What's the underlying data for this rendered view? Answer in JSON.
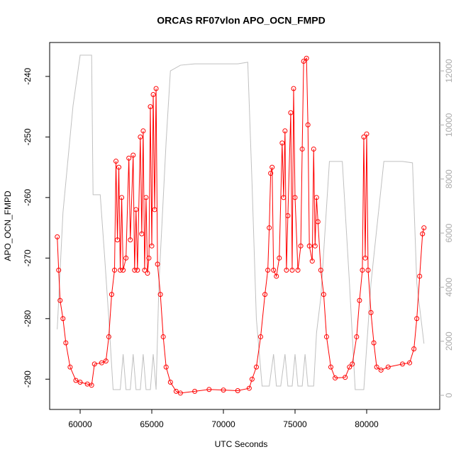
{
  "chart_data": {
    "type": "line",
    "title": "ORCAS RF07vlon APO_OCN_FMPD",
    "x_label": "UTC Seconds",
    "y_label": "APO_OCN_FMPD",
    "xlim": [
      57870,
      85100
    ],
    "xticks": [
      60000,
      65000,
      70000,
      75000,
      80000
    ],
    "ylim": [
      -295,
      -234.4
    ],
    "yticks": [
      -290,
      -280,
      -270,
      -260,
      -250,
      -240
    ],
    "y2lim": [
      -524,
      13050
    ],
    "y2ticks": [
      0,
      2000,
      4000,
      6000,
      8000,
      10000,
      12000
    ],
    "series": [
      {
        "color": "#ff0000",
        "markers": true,
        "x": [
          58400,
          58500,
          58600,
          58800,
          59000,
          59300,
          59700,
          60000,
          60500,
          60800,
          61000,
          61500,
          61800,
          62000,
          62200,
          62400,
          62500,
          62600,
          62700,
          62800,
          62900,
          63000,
          63200,
          63400,
          63500,
          63700,
          63800,
          63900,
          64000,
          64200,
          64300,
          64400,
          64500,
          64600,
          64700,
          64800,
          64900,
          65000,
          65100,
          65200,
          65300,
          65400,
          65600,
          65800,
          66000,
          66300,
          66700,
          67000,
          68000,
          69000,
          70000,
          71000,
          71800,
          72000,
          72300,
          72600,
          72900,
          73100,
          73200,
          73300,
          73400,
          73500,
          73700,
          73900,
          74100,
          74200,
          74300,
          74400,
          74500,
          74700,
          74800,
          74900,
          75000,
          75200,
          75400,
          75500,
          75600,
          75800,
          75900,
          76000,
          76200,
          76300,
          76400,
          76500,
          76600,
          76800,
          77000,
          77200,
          77500,
          77800,
          78500,
          78800,
          79000,
          79300,
          79500,
          79700,
          79800,
          79900,
          80000,
          80100,
          80300,
          80500,
          80700,
          81000,
          81500,
          82500,
          83000,
          83300,
          83500,
          83700,
          83900,
          84000
        ],
        "values": [
          -266.5,
          -272,
          -277,
          -280,
          -284,
          -288,
          -290.2,
          -290.5,
          -290.8,
          -291,
          -287.5,
          -287.3,
          -287,
          -283,
          -276,
          -272,
          -254,
          -267,
          -255,
          -272,
          -260,
          -272,
          -270,
          -253.5,
          -267,
          -253,
          -272,
          -262,
          -272,
          -250,
          -266,
          -249,
          -272,
          -260,
          -272.5,
          -270,
          -245,
          -268,
          -243,
          -262,
          -242,
          -271,
          -276,
          -283,
          -288,
          -290.5,
          -292,
          -292.3,
          -292,
          -291.7,
          -291.8,
          -291.9,
          -291.5,
          -290,
          -288,
          -283,
          -276,
          -272,
          -265,
          -256,
          -255,
          -272,
          -273,
          -270,
          -251,
          -260,
          -249,
          -272,
          -263,
          -246,
          -272,
          -242,
          -260,
          -272,
          -268,
          -252,
          -237.5,
          -237,
          -248,
          -268,
          -270.5,
          -252,
          -268,
          -260,
          -264,
          -272,
          -276,
          -283,
          -288,
          -289.8,
          -289.7,
          -288,
          -287.5,
          -283,
          -277,
          -272,
          -250,
          -270,
          -249.5,
          -272,
          -279,
          -284,
          -288,
          -288.5,
          -288,
          -287.5,
          -287.3,
          -285,
          -280,
          -273,
          -266,
          -265
        ]
      },
      {
        "color": "#c0c0c0",
        "markers": false,
        "axis": "y2",
        "x": [
          58400,
          58800,
          59500,
          60000,
          60800,
          60900,
          61400,
          61700,
          62000,
          62300,
          62800,
          63000,
          63200,
          63500,
          63700,
          63900,
          64200,
          64400,
          64600,
          64900,
          65100,
          65300,
          65500,
          66000,
          66300,
          67000,
          68000,
          70000,
          71000,
          71700,
          72000,
          72300,
          72700,
          73200,
          73500,
          73700,
          74000,
          74300,
          74500,
          74800,
          75000,
          75200,
          75500,
          75700,
          75900,
          76300,
          76500,
          76800,
          77400,
          78300,
          78800,
          79200,
          79800,
          80300,
          81200,
          82500,
          83200,
          83500,
          84000
        ],
        "values": [
          2440,
          6760,
          10700,
          12580,
          12580,
          7420,
          7420,
          5190,
          2830,
          210,
          210,
          1520,
          210,
          210,
          1520,
          210,
          210,
          1520,
          210,
          210,
          1520,
          210,
          4140,
          9380,
          12000,
          12210,
          12260,
          12260,
          12260,
          12320,
          7810,
          2830,
          340,
          340,
          1520,
          340,
          340,
          1520,
          340,
          340,
          1520,
          340,
          340,
          1520,
          340,
          340,
          2310,
          3620,
          8650,
          8650,
          4140,
          210,
          210,
          4140,
          8650,
          8650,
          8600,
          4140,
          1910
        ]
      }
    ]
  }
}
